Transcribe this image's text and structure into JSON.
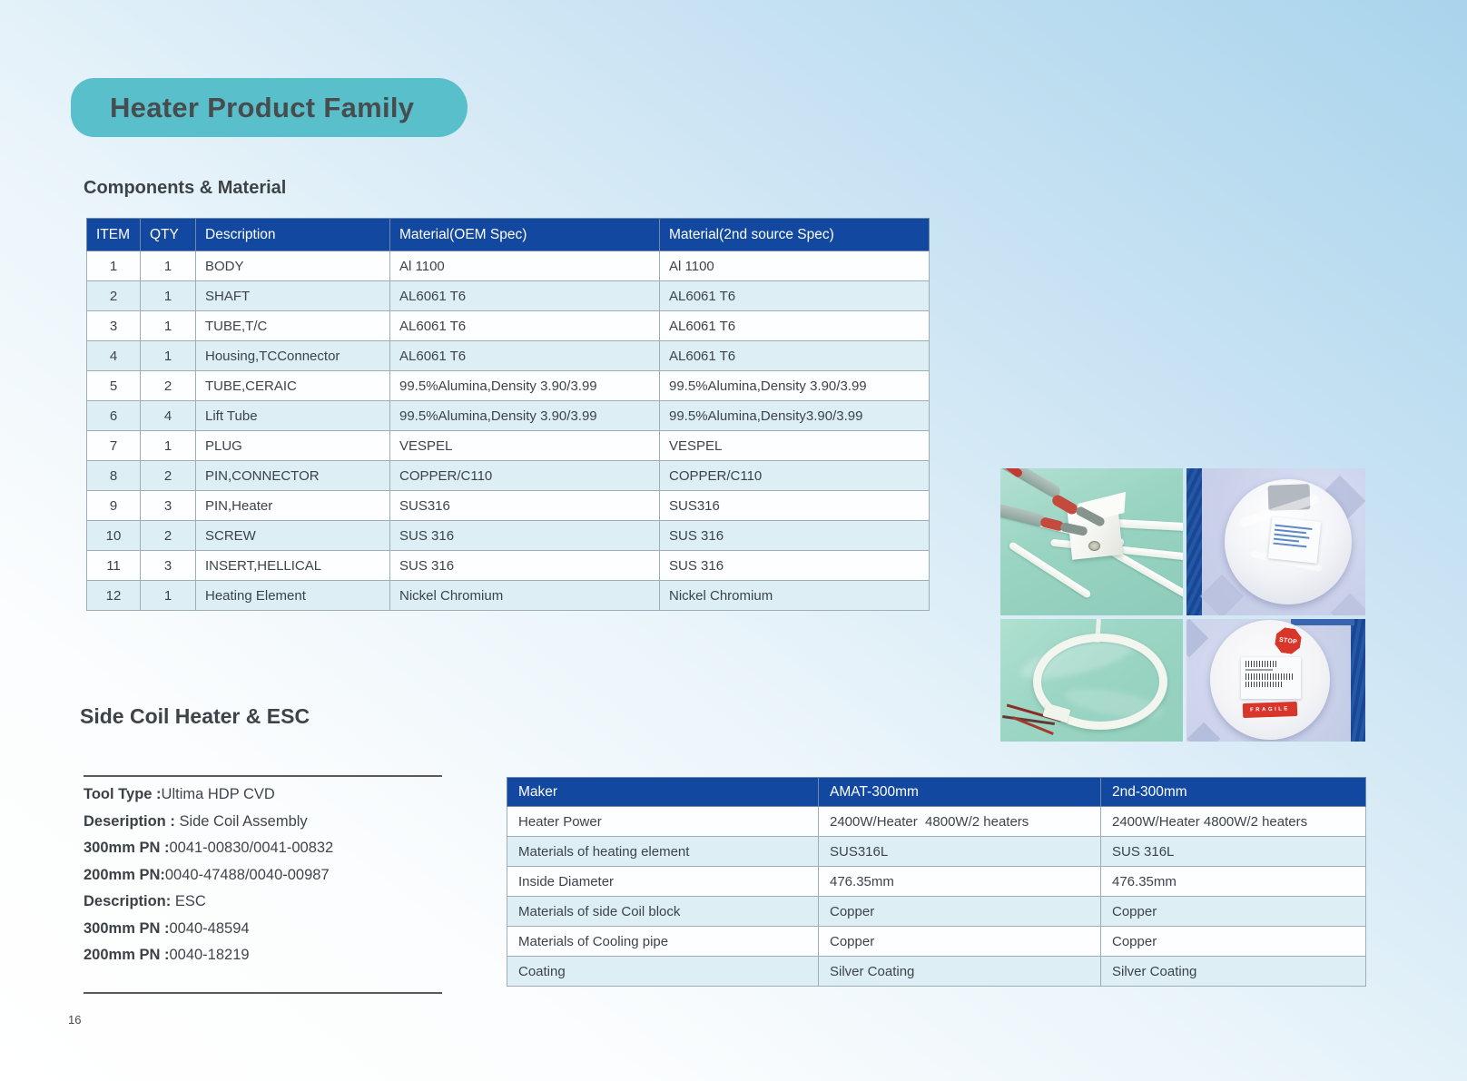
{
  "page": {
    "title": "Heater Product Family",
    "page_number": "16"
  },
  "colors": {
    "accent_teal": "#58bfcb",
    "table_header_blue": "#12489f",
    "row_alt_blue": "#ddeff4"
  },
  "components": {
    "heading": "Components & Material",
    "table": {
      "headers": [
        "ITEM",
        "QTY",
        "Description",
        "Material(OEM Spec)",
        "Material(2nd source Spec)"
      ],
      "rows": [
        [
          "1",
          "1",
          "BODY",
          "Al 1100",
          "Al 1100"
        ],
        [
          "2",
          "1",
          "SHAFT",
          "AL6061 T6",
          "AL6061 T6"
        ],
        [
          "3",
          "1",
          "TUBE,T/C",
          "AL6061 T6",
          "AL6061 T6"
        ],
        [
          "4",
          "1",
          "Housing,TCConnector",
          "AL6061 T6",
          "AL6061 T6"
        ],
        [
          "5",
          "2",
          "TUBE,CERAIC",
          "99.5%Alumina,Density 3.90/3.99",
          "99.5%Alumina,Density 3.90/3.99"
        ],
        [
          "6",
          "4",
          "Lift Tube",
          "99.5%Alumina,Density 3.90/3.99",
          "99.5%Alumina,Density3.90/3.99"
        ],
        [
          "7",
          "1",
          "PLUG",
          "VESPEL",
          "VESPEL"
        ],
        [
          "8",
          "2",
          "PIN,CONNECTOR",
          "COPPER/C110",
          "COPPER/C110"
        ],
        [
          "9",
          "3",
          "PIN,Heater",
          "SUS316",
          "SUS316"
        ],
        [
          "10",
          "2",
          "SCREW",
          "SUS 316",
          "SUS 316"
        ],
        [
          "11",
          "3",
          "INSERT,HELLICAL",
          "SUS 316",
          "SUS 316"
        ],
        [
          "12",
          "1",
          "Heating Element",
          "Nickel Chromium",
          "Nickel Chromium"
        ]
      ]
    }
  },
  "side_coil": {
    "heading": "Side Coil Heater & ESC",
    "info_lines": [
      {
        "label": "Tool Type :",
        "value": "Ultima HDP CVD"
      },
      {
        "label": "Deseription : ",
        "value": "Side Coil Assembly"
      },
      {
        "label": "300mm PN :",
        "value": "0041-00830/0041-00832"
      },
      {
        "label": "200mm PN:",
        "value": "0040-47488/0040-00987"
      },
      {
        "label": "Description: ",
        "value": "ESC"
      },
      {
        "label": "300mm PN :",
        "value": "0040-48594"
      },
      {
        "label": "200mm PN :",
        "value": "0040-18219"
      }
    ],
    "table": {
      "headers": [
        "Maker",
        "AMAT-300mm",
        "2nd-300mm"
      ],
      "rows": [
        [
          "Heater Power",
          "2400W/Heater  4800W/2 heaters",
          "2400W/Heater 4800W/2 heaters"
        ],
        [
          "Materials of heating element",
          "SUS316L",
          "SUS 316L"
        ],
        [
          "Inside Diameter",
          "476.35mm",
          "476.35mm"
        ],
        [
          "Materials of side Coil block",
          "Copper",
          "Copper"
        ],
        [
          "Materials of Cooling pipe",
          "Copper",
          "Copper"
        ],
        [
          "Coating",
          "Silver Coating",
          "Silver Coating"
        ]
      ]
    }
  },
  "photos": {
    "stop_label": "STOP",
    "fragile_label": "FRAGILE"
  }
}
